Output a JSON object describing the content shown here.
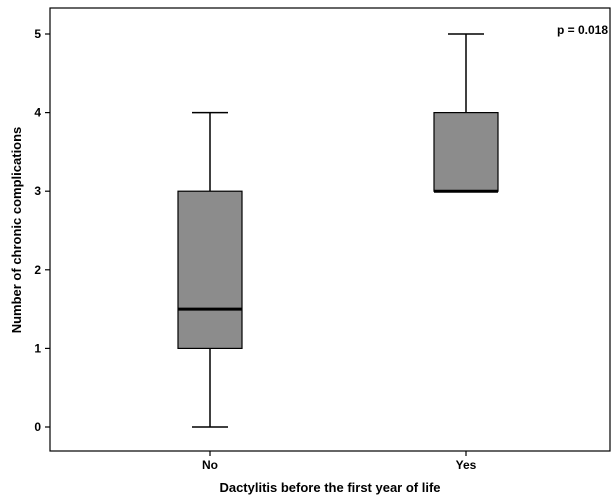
{
  "chart_data": {
    "type": "box",
    "categories": [
      "No",
      "Yes"
    ],
    "boxes": [
      {
        "category": "No",
        "min": 0,
        "q1": 1,
        "median": 1.5,
        "q3": 3,
        "max": 4
      },
      {
        "category": "Yes",
        "min": 3,
        "q1": 3,
        "median": 3,
        "q3": 4,
        "max": 5
      }
    ],
    "xlabel": "Dactylitis before the first year of life",
    "ylabel": "Number of chronic complications",
    "yticks": [
      "0",
      "1",
      "2",
      "3",
      "4",
      "5"
    ],
    "ylim": [
      -0.25,
      5.25
    ],
    "annotation": "p = 0.018",
    "annotation_position": "top-right",
    "grid": false,
    "legend": "none",
    "colors": {
      "box_fill": "#8c8c8c",
      "line": "#000000",
      "background": "#ffffff"
    }
  }
}
